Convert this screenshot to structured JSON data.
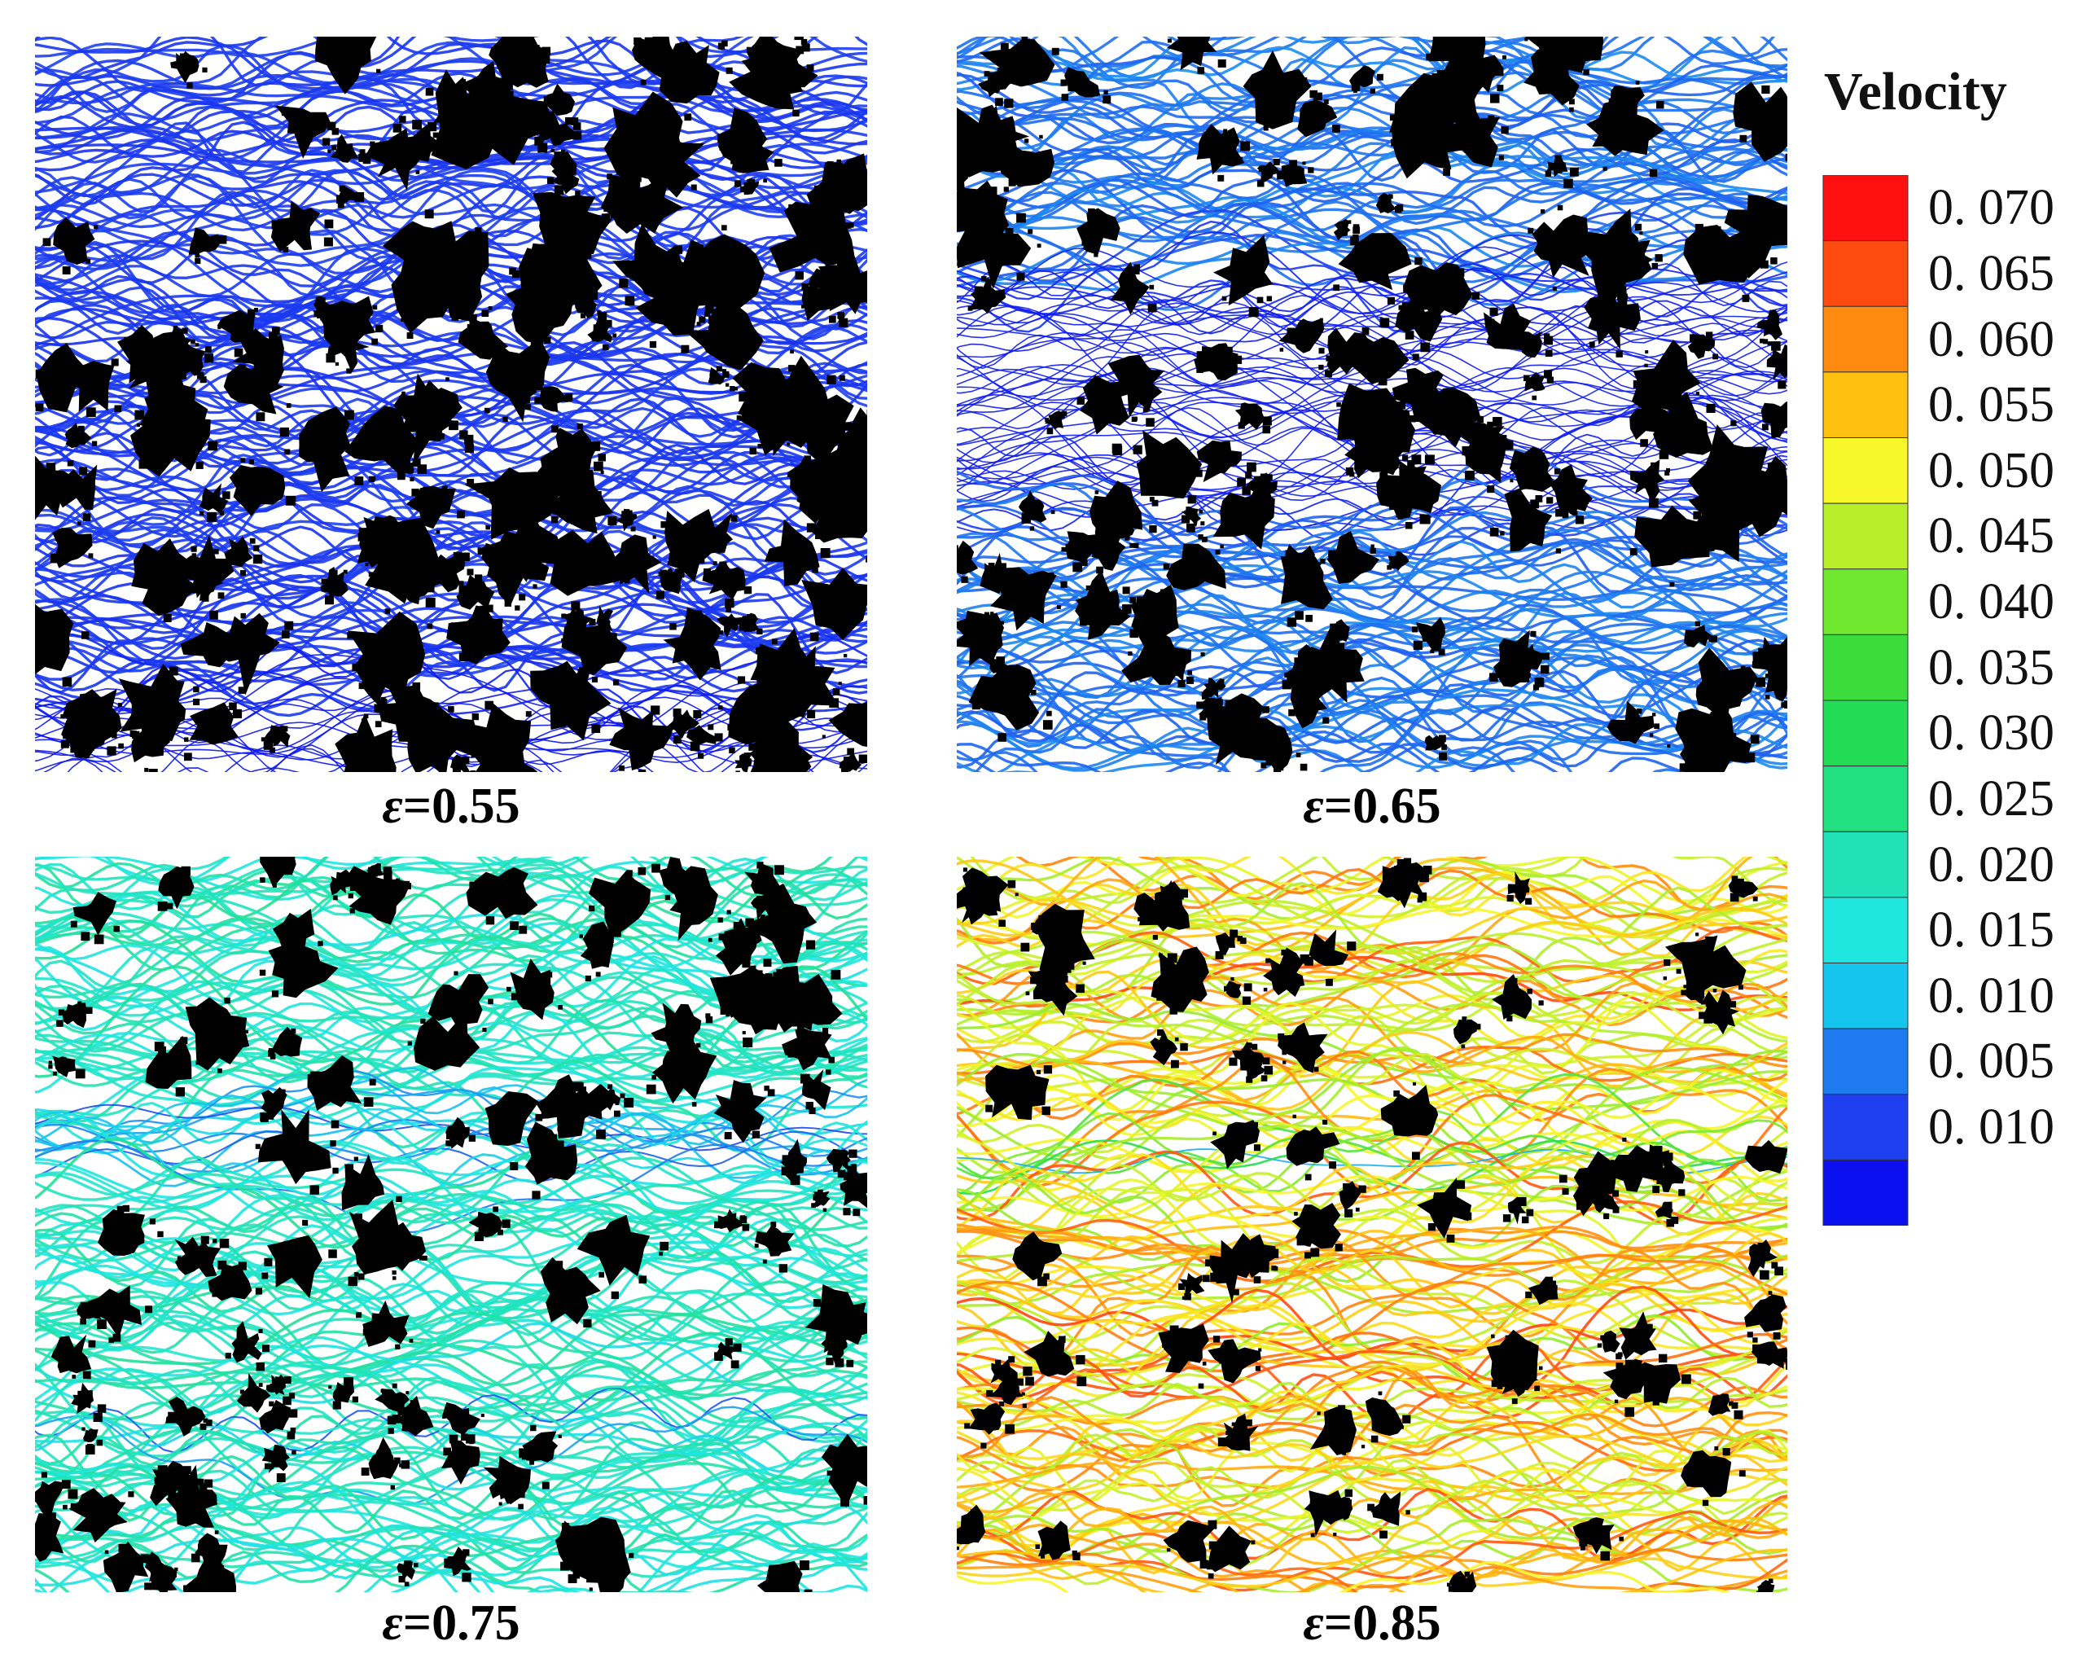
{
  "figure": {
    "legend_title": "Velocity",
    "colorbar_labels": [
      "0. 070",
      "0. 065",
      "0. 060",
      "0. 055",
      "0. 050",
      "0. 045",
      "0. 040",
      "0. 035",
      "0. 030",
      "0. 025",
      "0. 020",
      "0. 015",
      "0. 010",
      "0. 005",
      "0. 010"
    ],
    "colorbar_colors": [
      "#ff1010",
      "#ff4a10",
      "#ff8a10",
      "#ffc010",
      "#f7f72a",
      "#b8ee2a",
      "#70e830",
      "#3ddc3d",
      "#22dc55",
      "#20e080",
      "#22e0b8",
      "#20e6e0",
      "#16c4f0",
      "#1e7cf0",
      "#1e40f0",
      "#0a10f0"
    ],
    "panels": [
      {
        "symbol": "ε",
        "label": "=0.55",
        "porosity": 0.55,
        "max_velocity": 0.006
      },
      {
        "symbol": "ε",
        "label": "=0.65",
        "porosity": 0.65,
        "max_velocity": 0.012
      },
      {
        "symbol": "ε",
        "label": "=0.75",
        "porosity": 0.75,
        "max_velocity": 0.03
      },
      {
        "symbol": "ε",
        "label": "=0.85",
        "porosity": 0.85,
        "max_velocity": 0.07
      }
    ]
  }
}
